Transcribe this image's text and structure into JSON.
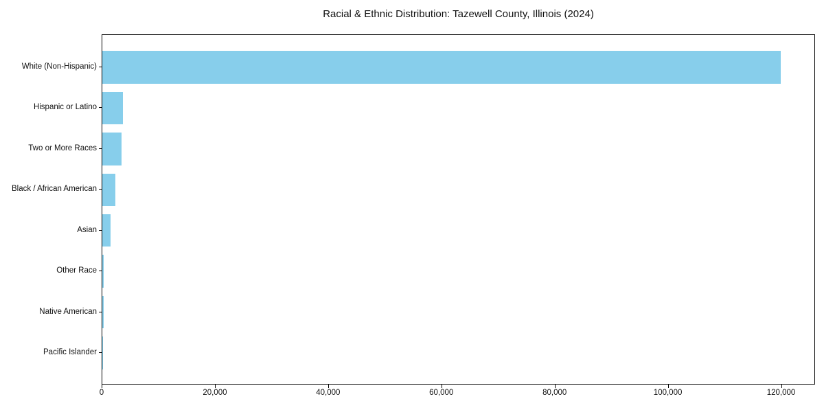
{
  "chart_data": {
    "type": "bar",
    "orientation": "horizontal",
    "title": "Racial & Ethnic Distribution: Tazewell County, Illinois (2024)",
    "categories": [
      "White (Non-Hispanic)",
      "Hispanic or Latino",
      "Two or More Races",
      "Black / African American",
      "Asian",
      "Other Race",
      "Native American",
      "Pacific Islander"
    ],
    "values": [
      119800,
      3600,
      3400,
      2250,
      1500,
      300,
      250,
      40
    ],
    "xlabel": "",
    "ylabel": "",
    "xlim": [
      0,
      126000
    ],
    "xticks": [
      0,
      20000,
      40000,
      60000,
      80000,
      100000,
      120000
    ],
    "xtick_labels": [
      "0",
      "20,000",
      "40,000",
      "60,000",
      "80,000",
      "100,000",
      "120,000"
    ],
    "bar_color": "#87CEEB",
    "axis_color": "#000000",
    "text_color": "#111111",
    "background_color": "#ffffff",
    "grid": false,
    "legend": null
  }
}
